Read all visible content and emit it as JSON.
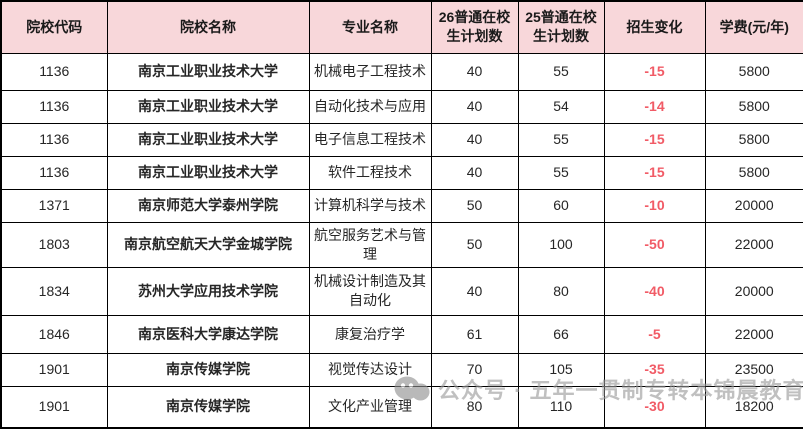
{
  "chart_data": {
    "type": "table",
    "columns": [
      "院校代码",
      "院校名称",
      "专业名称",
      "26普通在校生计划数",
      "25普通在校生计划数",
      "招生变化",
      "学费(元/年)"
    ],
    "rows": [
      [
        "1136",
        "南京工业职业技术大学",
        "机械电子工程技术",
        "40",
        "55",
        "-15",
        "5800"
      ],
      [
        "1136",
        "南京工业职业技术大学",
        "自动化技术与应用",
        "40",
        "54",
        "-14",
        "5800"
      ],
      [
        "1136",
        "南京工业职业技术大学",
        "电子信息工程技术",
        "40",
        "55",
        "-15",
        "5800"
      ],
      [
        "1136",
        "南京工业职业技术大学",
        "软件工程技术",
        "40",
        "55",
        "-15",
        "5800"
      ],
      [
        "1371",
        "南京师范大学泰州学院",
        "计算机科学与技术",
        "50",
        "60",
        "-10",
        "20000"
      ],
      [
        "1803",
        "南京航空航天大学金城学院",
        "航空服务艺术与管理",
        "50",
        "100",
        "-50",
        "22000"
      ],
      [
        "1834",
        "苏州大学应用技术学院",
        "机械设计制造及其自动化",
        "40",
        "80",
        "-40",
        "20000"
      ],
      [
        "1846",
        "南京医科大学康达学院",
        "康复治疗学",
        "61",
        "66",
        "-5",
        "22000"
      ],
      [
        "1901",
        "南京传媒学院",
        "视觉传达设计",
        "70",
        "105",
        "-35",
        "23500"
      ],
      [
        "1901",
        "南京传媒学院",
        "文化产业管理",
        "80",
        "110",
        "-30",
        "18200"
      ]
    ]
  },
  "watermark": {
    "text": "公众号 · 五年一贯制专转本锦晨教育",
    "icon": "wechat-official-account-icon"
  },
  "colors": {
    "header_bg": "#f8d7da",
    "negative_change": "#f15b66",
    "border": "#000000",
    "body_text": "#262626",
    "watermark_text": "#9b9b9b"
  }
}
